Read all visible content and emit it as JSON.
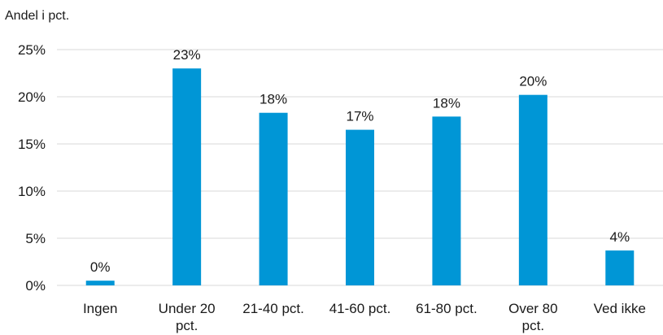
{
  "chart_data": {
    "type": "bar",
    "ylabel": "Andel i pct.",
    "categories": [
      [
        "Ingen"
      ],
      [
        "Under 20",
        "pct."
      ],
      [
        "21-40 pct."
      ],
      [
        "41-60 pct."
      ],
      [
        "61-80 pct."
      ],
      [
        "Over 80",
        "pct."
      ],
      [
        "Ved ikke"
      ]
    ],
    "values": [
      0.5,
      23,
      18.3,
      16.5,
      17.9,
      20.2,
      3.7
    ],
    "data_labels": [
      "0%",
      "23%",
      "18%",
      "17%",
      "18%",
      "20%",
      "4%"
    ],
    "ylim": [
      0,
      25
    ],
    "yticks": [
      0,
      5,
      10,
      15,
      20,
      25
    ],
    "ytick_labels": [
      "0%",
      "5%",
      "10%",
      "15%",
      "20%",
      "25%"
    ],
    "grid": true,
    "bar_color": "#0096d6"
  }
}
